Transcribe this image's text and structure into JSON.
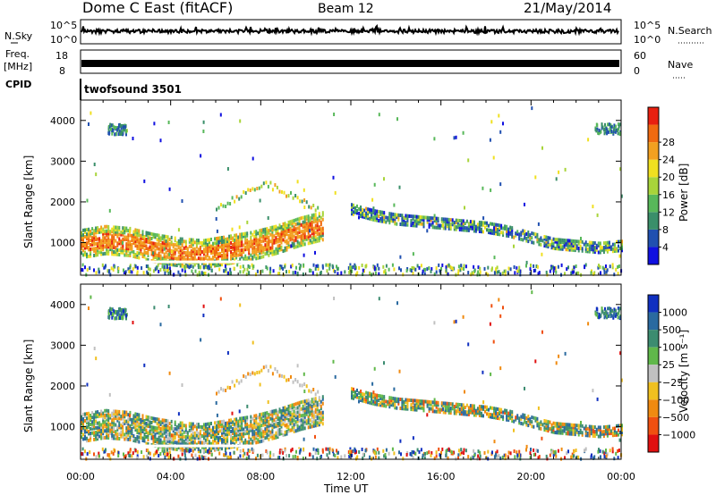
{
  "header": {
    "station": "Dome C East (fitACF)",
    "beam": "Beam 12",
    "date": "21/May/2014"
  },
  "strip_panels": {
    "nsky": {
      "label": "N.Sky",
      "tick_top": "10^5",
      "tick_bottom": "10^0",
      "right_label": "N.Search",
      "right_tick_top": "10^5",
      "right_tick_bottom": "10^0"
    },
    "freq": {
      "label_line1": "Freq.",
      "label_line2": "[MHz]",
      "tick_top": "18",
      "tick_bottom": "8",
      "right_label": "Nave",
      "right_tick_top": "60",
      "right_tick_bottom": "0"
    },
    "cpid": {
      "label": "CPID",
      "value": "twofsound 3501"
    }
  },
  "chart_data": [
    {
      "type": "heatmap",
      "panel": "power",
      "ylabel": "Slant Range [km]",
      "ylim": [
        200,
        4500
      ],
      "yticks": [
        "1000",
        "2000",
        "3000",
        "4000"
      ],
      "xlim": [
        "00:00",
        "24:00"
      ],
      "colorbar_label": "Power [dB]",
      "colorbar_ticks": [
        "4",
        "8",
        "12",
        "16",
        "20",
        "24",
        "28"
      ],
      "colorbar_range": [
        0,
        32
      ],
      "colorbar_colors": [
        "#1010e0",
        "#2050b0",
        "#3a8f6a",
        "#58b85a",
        "#a8d43a",
        "#f0e020",
        "#f2a020",
        "#f06a10",
        "#e82010"
      ],
      "scatter_bands": [
        {
          "start_hr": 0.0,
          "end_hr": 10.8,
          "range_center_km": [
            1000,
            1100,
            1050,
            900,
            800,
            750,
            850,
            950,
            1100,
            1300,
            1450
          ],
          "width_km": 700,
          "dominant": "strong"
        },
        {
          "start_hr": 12.0,
          "end_hr": 24.0,
          "range_center_km": [
            1850,
            1700,
            1600,
            1550,
            1500,
            1450,
            1400,
            1300,
            1150,
            1000,
            950,
            900,
            950
          ],
          "width_km": 250,
          "dominant": "moderate"
        }
      ]
    },
    {
      "type": "heatmap",
      "panel": "velocity",
      "ylabel": "Slant Range [km]",
      "ylim": [
        200,
        4500
      ],
      "yticks": [
        "1000",
        "2000",
        "3000",
        "4000"
      ],
      "xlim": [
        "00:00",
        "24:00"
      ],
      "xticks": [
        "00:00",
        "04:00",
        "08:00",
        "12:00",
        "16:00",
        "20:00",
        "00:00"
      ],
      "xlabel": "Time UT",
      "colorbar_label": "Velocity [m s⁻¹]",
      "colorbar_ticks": [
        "1000",
        "500",
        "100",
        "25",
        "−25",
        "−100",
        "−500",
        "−1000"
      ],
      "colorbar_colors": [
        "#1030c0",
        "#2a6aa0",
        "#3c8c70",
        "#60b84a",
        "#c0c0c0",
        "#f0c020",
        "#f08a10",
        "#f05010",
        "#e01010"
      ]
    }
  ]
}
